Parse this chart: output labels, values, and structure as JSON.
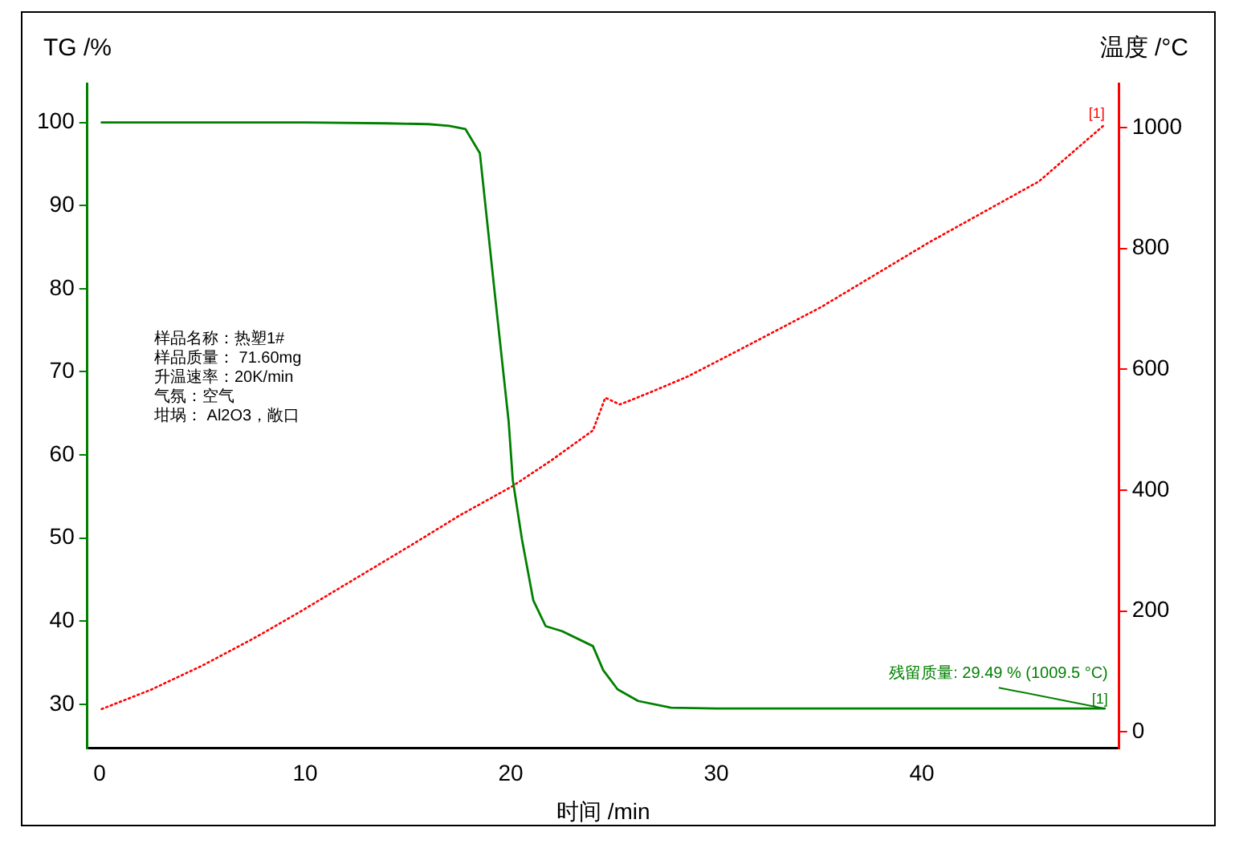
{
  "chart_data": {
    "type": "line",
    "xlabel": "时间 /min",
    "ylabel": "TG /%",
    "y2label": "温度 /°C",
    "xlim": [
      -0.6,
      49.6
    ],
    "xticks": [
      0,
      10,
      20,
      30,
      40
    ],
    "ylim": [
      24.7,
      104.7
    ],
    "yticks": [
      30,
      40,
      50,
      60,
      70,
      80,
      90,
      100
    ],
    "y2lim": [
      -27,
      1073
    ],
    "y2ticks": [
      0,
      200,
      400,
      600,
      800,
      1000
    ],
    "grid": false,
    "legend": false,
    "marker": "none",
    "series": [
      {
        "color": "#008000",
        "line_style": "solid",
        "x": [
          0.1,
          5,
          10,
          14,
          16,
          17,
          17.8,
          18.5,
          19.2,
          19.9,
          20.1,
          20.55,
          21.1,
          21.7,
          22.5,
          24.0,
          24.5,
          25.2,
          26.2,
          27.8,
          30,
          35,
          40,
          45,
          48.9
        ],
        "values": [
          100,
          100,
          100,
          99.9,
          99.8,
          99.6,
          99.2,
          96.3,
          80,
          64.0,
          57,
          49.8,
          42.5,
          39.4,
          38.8,
          37.0,
          34.1,
          31.8,
          30.4,
          29.6,
          29.5,
          29.5,
          29.5,
          29.5,
          29.5
        ]
      },
      {
        "color": "#ff0000",
        "line_style": "dotted",
        "axis": "y2",
        "x": [
          0.1,
          2.5,
          5,
          7.5,
          9.9,
          12.5,
          15.2,
          17.5,
          20.1,
          22,
          24.0,
          24.6,
          25.3,
          25.7,
          27,
          28.6,
          31,
          35.1,
          40.4,
          45.7,
          48.9
        ],
        "values": [
          38,
          70,
          110,
          155,
          202,
          255,
          310,
          358,
          407,
          450,
          499,
          553,
          542,
          547,
          565,
          588,
          630,
          703,
          811,
          911,
          1005
        ]
      }
    ],
    "annotations": [
      "样品名称：热塑1#",
      "样品质量： 71.60mg",
      "升温速率：20K/min",
      "气氛：空气",
      "坩埚： Al2O3，敞口",
      "[1]",
      {
        "text": "残留质量: 29.49 % (1009.5 °C)",
        "x": 48.9,
        "y": 29.49
      },
      {
        "text": "[1]",
        "x": 48.9,
        "y": 29.49
      }
    ]
  }
}
